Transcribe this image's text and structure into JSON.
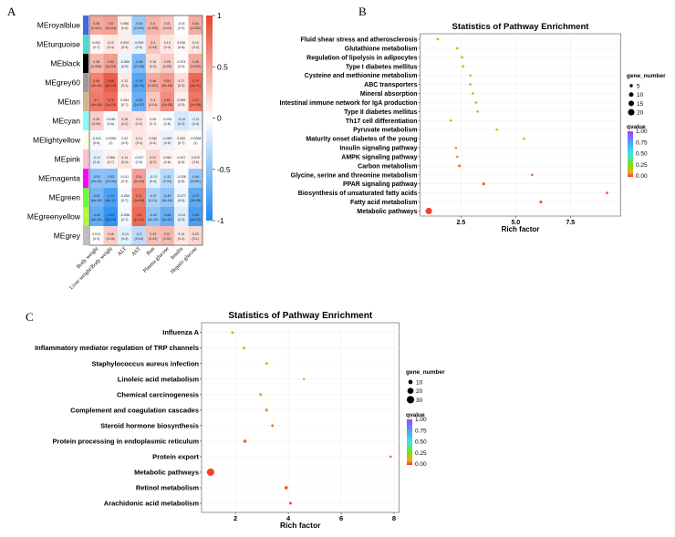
{
  "panel_labels": [
    "A",
    "B",
    "C"
  ],
  "colors": {
    "heat_negative": "#1E88F0",
    "heat_zero": "#FFFFFF",
    "heat_positive": "#E8432B",
    "qvalue_stops": [
      "#F03A2D",
      "#F5A623",
      "#80E000",
      "#40E6E6",
      "#4FA0FF",
      "#A040FF"
    ]
  },
  "chart_data": [
    {
      "type": "heatmap",
      "panel": "A",
      "rows": [
        "MEroyalblue",
        "MEturquoise",
        "MEblack",
        "MEgrey60",
        "MEtan",
        "MEcyan",
        "MElightyellow",
        "MEpink",
        "MEmagenta",
        "MEgreen",
        "MEgreenyellow",
        "MEgrey"
      ],
      "row_colors": [
        "#4169E1",
        "#40E0D0",
        "#000000",
        "#999999",
        "#D2B48C",
        "#7FFFFF",
        "#FFFFE0",
        "#FFC0CB",
        "#FF00FF",
        "#66FF33",
        "#ADFF2F",
        "#BEBEBE"
      ],
      "columns": [
        "Body weight",
        "Liver weight/Body weight",
        "ALT",
        "AST",
        "Bun",
        "Plasma glucose",
        "Insulin",
        "Hepatic glucose"
      ],
      "values": [
        [
          0.46,
          0.5,
          0.086,
          -0.45,
          0.4,
          0.31,
          -0.01,
          0.44
        ],
        [
          0.051,
          0.13,
          0.092,
          -0.099,
          0.3,
          0.13,
          0.036,
          0.13
        ],
        [
          0.38,
          0.52,
          -0.089,
          -0.58,
          0.18,
          0.28,
          0.023,
          0.45
        ],
        [
          0.66,
          0.86,
          0.12,
          -0.76,
          0.46,
          0.54,
          0.17,
          0.79
        ],
        [
          0.7,
          0.78,
          0.054,
          -0.68,
          0.3,
          0.61,
          0.089,
          0.72
        ],
        [
          0.26,
          -0.046,
          0.18,
          0.14,
          0.05,
          -0.034,
          -0.19,
          -0.12
        ],
        [
          -0.041,
          -0.0059,
          0.02,
          0.13,
          0.082,
          -0.089,
          0.052,
          -0.0058
        ],
        [
          -0.12,
          0.068,
          0.14,
          -0.027,
          0.21,
          0.062,
          0.037,
          0.075
        ],
        [
          -0.51,
          -0.53,
          0.011,
          0.51,
          -0.13,
          -0.32,
          -0.036,
          -0.46
        ],
        [
          -0.61,
          -0.79,
          -0.053,
          0.71,
          -0.37,
          -0.49,
          -0.077,
          -0.72
        ],
        [
          -0.69,
          -0.91,
          -0.056,
          0.8,
          -0.49,
          -0.68,
          -0.14,
          -0.81
        ],
        [
          0.013,
          0.26,
          -0.13,
          -0.3,
          0.33,
          0.37,
          0.13,
          0.22
        ]
      ],
      "pvalues": [
        [
          "0.001",
          "3e-04",
          "0.6",
          "0.001",
          "0.005",
          "0.03",
          "0.9",
          "0.002"
        ],
        [
          "0.7",
          "0.4",
          "0.5",
          "0.5",
          "0.04",
          "0.4",
          "0.8",
          "0.4"
        ],
        [
          "0.008",
          "1e-04",
          "0.5",
          "7e-05",
          "0.2",
          "0.05",
          "0.9",
          "0.002"
        ],
        [
          "4e-08",
          "4e-15",
          "0.4",
          "3e-10",
          "0.001",
          "6e-05",
          "0.3",
          "3e-11"
        ],
        [
          "4e-08",
          "1e-10",
          "0.7",
          "1e-07",
          "0.04",
          "1e-05",
          "0.5",
          "1e-08"
        ],
        [
          "0.09",
          "0.8",
          "0.2",
          "0.3",
          "0.7",
          "0.8",
          "0.2",
          "0.4"
        ],
        [
          "0.8",
          "1",
          "0.9",
          "0.4",
          "0.6",
          "0.5",
          "0.7",
          "1"
        ],
        [
          "0.4",
          "0.7",
          "0.4",
          "0.9",
          "0.2",
          "0.6",
          "0.8",
          "0.6"
        ],
        [
          "2e-04",
          "1e-04",
          "0.9",
          "2e-04",
          "0.4",
          "0.03",
          "0.8",
          "0.001"
        ],
        [
          "6e-06",
          "6e-11",
          "0.7",
          "2e-08",
          "0.01",
          "5e-04",
          "0.6",
          "2e-08"
        ],
        [
          "6e-08",
          "5e-19",
          "0.7",
          "1e-11",
          "4e-04",
          "1e-07",
          "0.3",
          "4e-12"
        ],
        [
          "0.9",
          "0.08",
          "0.4",
          "0.04",
          "0.02",
          "0.01",
          "0.4",
          "0.1"
        ]
      ],
      "color_scale": {
        "range": [
          -1,
          1
        ],
        "tick_labels": [
          "1",
          "0.5",
          "0",
          "-0.5",
          "-1"
        ]
      }
    },
    {
      "type": "scatter",
      "panel": "B",
      "title": "Statistics of Pathway Enrichment",
      "xlabel": "Rich factor",
      "xlim": [
        0.63,
        9.8
      ],
      "xticks": [
        2.5,
        5.0,
        7.5
      ],
      "xtick_labels": [
        "2.5",
        "5.0",
        "7.5"
      ],
      "grid": true,
      "categories": [
        "Fluid shear stress and atherosclerosis",
        "Glutathione metabolism",
        "Regulation of lipolysis in adipocytes",
        "Type I diabetes mellitus",
        "Cysteine and methionine metabolism",
        "ABC transporters",
        "Mineral absorption",
        "Intestinal immune network for IgA production",
        "Type II diabetes mellitus",
        "Th17 cell differentiation",
        "Pyruvate metabolism",
        "Maturity onset diabetes of the young",
        "Insulin signaling pathway",
        "AMPK signaling pathway",
        "Carbon metabolism",
        "Glycine, serine and threonine metabolism",
        "PPAR signaling pathway",
        "Biosynthesis of unsaturated fatty acids",
        "Fatty acid metabolism",
        "Metabolic pathways"
      ],
      "rich_factor": [
        1.44,
        2.33,
        2.55,
        2.6,
        2.93,
        2.93,
        3.04,
        3.19,
        3.26,
        2.03,
        4.14,
        5.38,
        2.27,
        2.33,
        2.43,
        5.75,
        3.54,
        9.17,
        6.15,
        1.03
      ],
      "gene_number": [
        3,
        3,
        3,
        3,
        3,
        3,
        3,
        3,
        3,
        3,
        3,
        3,
        3,
        3,
        4,
        3,
        4,
        3,
        4,
        21
      ],
      "qvalue": [
        0.2,
        0.2,
        0.2,
        0.2,
        0.18,
        0.18,
        0.18,
        0.18,
        0.18,
        0.12,
        0.12,
        0.12,
        0.08,
        0.08,
        0.06,
        0.05,
        0.03,
        0.02,
        0.02,
        0.01
      ],
      "size_legend": {
        "title": "gene_number",
        "values": [
          5,
          10,
          15,
          20
        ],
        "labels": [
          "5",
          "10",
          "15",
          "20"
        ]
      },
      "color_legend": {
        "title": "qvalue",
        "labels": [
          "1.00",
          "0.75",
          "0.50",
          "0.25",
          "0.00"
        ]
      },
      "legend_position": "right"
    },
    {
      "type": "scatter",
      "panel": "C",
      "title": "Statistics of Pathway Enrichment",
      "xlabel": "Rich factor",
      "xlim": [
        0.72,
        8.19
      ],
      "xticks": [
        2,
        4,
        6,
        8
      ],
      "xtick_labels": [
        "2",
        "4",
        "6",
        "8"
      ],
      "grid": true,
      "categories": [
        "Influenza A",
        "Inflammatory mediator regulation of TRP channels",
        "Staphylococcus aureus infection",
        "Linoleic acid metabolism",
        "Chemical carcinogenesis",
        "Complement and coagulation cascades",
        "Steroid hormone biosynthesis",
        "Protein processing in endoplasmic reticulum",
        "Protein export",
        "Metabolic pathways",
        "Retinol metabolism",
        "Arachidonic acid metabolism"
      ],
      "rich_factor": [
        1.89,
        2.32,
        3.18,
        4.59,
        2.95,
        3.18,
        3.4,
        2.36,
        7.87,
        1.06,
        3.92,
        4.08
      ],
      "gene_number": [
        4,
        4,
        4,
        3,
        5,
        5,
        4,
        6,
        3,
        30,
        6,
        4
      ],
      "qvalue": [
        0.2,
        0.15,
        0.13,
        0.13,
        0.1,
        0.08,
        0.06,
        0.04,
        0.05,
        0.01,
        0.02,
        0.01
      ],
      "size_legend": {
        "title": "gene_number",
        "values": [
          10,
          20,
          30
        ],
        "labels": [
          "10",
          "20",
          "30"
        ]
      },
      "color_legend": {
        "title": "qvalue",
        "labels": [
          "1.00",
          "0.75",
          "0.50",
          "0.25",
          "0.00"
        ]
      },
      "legend_position": "right"
    }
  ]
}
